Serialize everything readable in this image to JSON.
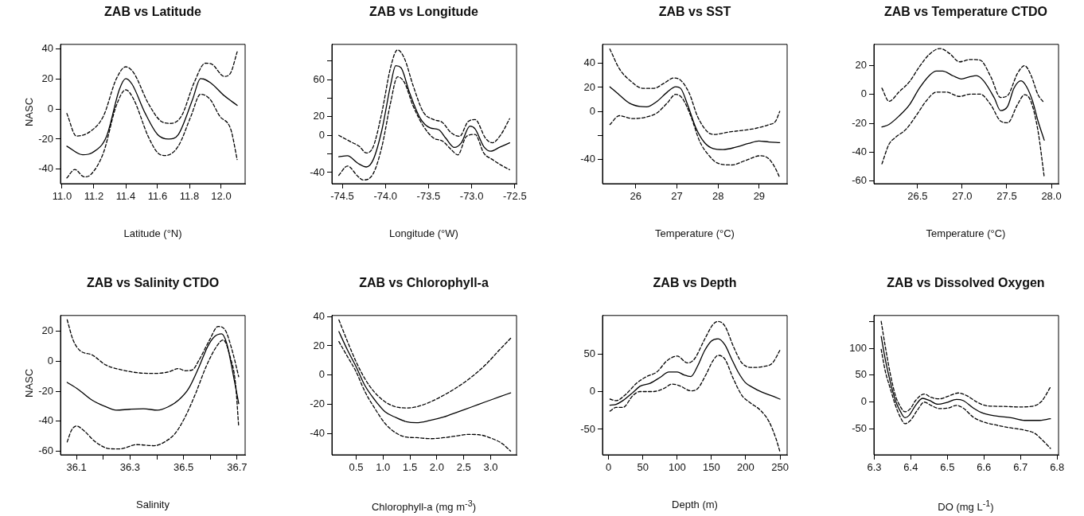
{
  "chart_data": [
    {
      "type": "line",
      "title": "ZAB vs Latitude",
      "xlabel": "Latitude (°N)",
      "ylabel": "NASC",
      "xlim": [
        10.99,
        12.15
      ],
      "ylim": [
        -49.6,
        42.9
      ],
      "xticks": [
        {
          "value": 11,
          "label": "11.0"
        },
        11.2,
        11.4,
        11.6,
        11.8,
        {
          "value": 12,
          "label": "12.0"
        }
      ],
      "yticks": [
        -40,
        -20,
        0,
        20,
        40
      ],
      "series": [
        {
          "color": "#000000",
          "line_style": "solid",
          "x": [
            11.03,
            11.13,
            11.19,
            11.28,
            11.36,
            11.4,
            11.44,
            11.52,
            11.6,
            11.67,
            11.73,
            11.82,
            11.87,
            11.93,
            12.02,
            12.1
          ],
          "values": [
            -24.7,
            -30.4,
            -29,
            -18,
            13,
            20.2,
            16.4,
            -2.4,
            -17,
            -20,
            -17,
            6.4,
            20.2,
            17.6,
            8.7,
            2.4
          ]
        },
        {
          "color": "#000000",
          "line_style": "dashed",
          "x": [
            11.03,
            11.09,
            11.18,
            11.26,
            11.34,
            11.4,
            11.45,
            11.54,
            11.62,
            11.68,
            11.75,
            11.83,
            11.9,
            11.94,
            12.02,
            12.06,
            12.1
          ],
          "values": [
            -3,
            -18,
            -14.7,
            -4.7,
            19.8,
            28,
            24,
            4,
            -8,
            -9.6,
            -4.7,
            17.6,
            30.4,
            29.8,
            21.6,
            24.2,
            38
          ]
        },
        {
          "color": "#000000",
          "line_style": "dashed",
          "x": [
            11.03,
            11.08,
            11.14,
            11.18,
            11.26,
            11.34,
            11.4,
            11.45,
            11.54,
            11.6,
            11.65,
            11.73,
            11.81,
            11.87,
            11.93,
            11.99,
            12.06,
            12.1
          ],
          "values": [
            -45.8,
            -40.2,
            -45.1,
            -43.6,
            -29,
            2,
            12.7,
            6.4,
            -18,
            -29,
            -30.9,
            -24.7,
            -4.7,
            9.8,
            6.4,
            -4.7,
            -13.6,
            -33.6
          ]
        }
      ]
    },
    {
      "type": "line",
      "title": "ZAB vs Longitude",
      "xlabel": "Longitude (°W)",
      "xlim": [
        -74.62,
        -72.48
      ],
      "ylim": [
        -52,
        98
      ],
      "xticks": [
        -74.5,
        {
          "value": -74,
          "label": "-74.0"
        },
        -73.5,
        {
          "value": -73,
          "label": "-73.0"
        },
        -72.5
      ],
      "yticks": [
        -40,
        {
          "value": -20,
          "label": null
        },
        0,
        20,
        {
          "value": 40,
          "label": null
        },
        60,
        {
          "value": 80,
          "label": null
        }
      ],
      "series": [
        {
          "color": "#000000",
          "line_style": "solid",
          "x": [
            -74.54,
            -74.44,
            -74.32,
            -74.22,
            -74.14,
            -74.04,
            -73.94,
            -73.88,
            -73.82,
            -73.72,
            -73.6,
            -73.48,
            -73.38,
            -73.3,
            -73.2,
            -73.12,
            -73.02,
            -72.96,
            -72.86,
            -72.78,
            -72.68,
            -72.56
          ],
          "values": [
            -23,
            -22,
            -30,
            -34,
            -26,
            6,
            54,
            75,
            73,
            46,
            19,
            8,
            6,
            -3,
            -13,
            -8,
            10,
            7,
            -12,
            -17,
            -13,
            -8
          ]
        },
        {
          "color": "#000000",
          "line_style": "dashed",
          "x": [
            -74.54,
            -74.4,
            -74.3,
            -74.22,
            -74.14,
            -74.04,
            -73.94,
            -73.86,
            -73.78,
            -73.68,
            -73.56,
            -73.44,
            -73.34,
            -73.24,
            -73.14,
            -73.04,
            -72.96,
            -72.84,
            -72.76,
            -72.66,
            -72.56
          ],
          "values": [
            0,
            -7,
            -12,
            -19,
            -12,
            25,
            73,
            92,
            83,
            54,
            25,
            17,
            14,
            3,
            -1,
            15,
            17,
            -3,
            -8,
            1,
            18
          ]
        },
        {
          "color": "#000000",
          "line_style": "dashed",
          "x": [
            -74.54,
            -74.44,
            -74.32,
            -74.26,
            -74.14,
            -74.04,
            -73.94,
            -73.86,
            -73.78,
            -73.68,
            -73.56,
            -73.44,
            -73.34,
            -73.24,
            -73.16,
            -73.06,
            -72.96,
            -72.86,
            -72.76,
            -72.66,
            -72.56
          ],
          "values": [
            -43,
            -33,
            -44,
            -48,
            -41,
            -12,
            35,
            63,
            57,
            32,
            10,
            -3,
            -6,
            -15,
            -21,
            -1,
            1,
            -19,
            -26,
            -32,
            -37
          ]
        }
      ]
    },
    {
      "type": "line",
      "title": "ZAB vs SST",
      "xlabel": "Temperature (°C)",
      "xlim": [
        25.19,
        29.68
      ],
      "ylim": [
        -60.3,
        55.9
      ],
      "xticks": [
        26,
        27,
        28,
        29
      ],
      "yticks": [
        -40,
        {
          "value": -20,
          "label": null
        },
        0,
        20,
        40
      ],
      "series": [
        {
          "color": "#000000",
          "line_style": "solid",
          "x": [
            25.37,
            25.6,
            25.85,
            26.1,
            26.26,
            26.51,
            26.76,
            26.97,
            27.09,
            27.26,
            27.46,
            27.67,
            27.88,
            28.12,
            28.41,
            28.74,
            28.99,
            29.24,
            29.5
          ],
          "values": [
            20.5,
            13.7,
            6.8,
            4.1,
            3.8,
            8.2,
            15.9,
            20.5,
            19.2,
            5.5,
            -13.7,
            -26,
            -31,
            -31.8,
            -30.1,
            -26.8,
            -24.7,
            -25.5,
            -26
          ]
        },
        {
          "color": "#000000",
          "line_style": "dashed",
          "x": [
            25.37,
            25.6,
            25.85,
            26.18,
            26.43,
            26.68,
            26.93,
            27.09,
            27.3,
            27.5,
            27.75,
            27.92,
            28.25,
            28.58,
            28.91,
            29.24,
            29.4,
            29.5
          ],
          "values": [
            52,
            35.6,
            26,
            19.2,
            19.2,
            23.3,
            27.9,
            26,
            15.1,
            -4.1,
            -17.3,
            -19.2,
            -17.3,
            -15.9,
            -14.2,
            -11,
            -8.2,
            0
          ]
        },
        {
          "color": "#000000",
          "line_style": "dashed",
          "x": [
            25.37,
            25.6,
            25.93,
            26.26,
            26.51,
            26.76,
            26.97,
            27.13,
            27.34,
            27.55,
            27.75,
            28.0,
            28.33,
            28.66,
            29.03,
            29.24,
            29.4,
            29.5
          ],
          "values": [
            -11,
            -3.6,
            -6,
            -4.7,
            -1.4,
            6.8,
            14.2,
            11,
            -4.1,
            -24.7,
            -35.6,
            -43.3,
            -44.7,
            -41.1,
            -37,
            -39.7,
            -47.9,
            -55.3
          ]
        }
      ]
    },
    {
      "type": "line",
      "title": "ZAB vs Temperature CTDO",
      "xlabel": "Temperature (°C)",
      "xlim": [
        26.01,
        28.08
      ],
      "ylim": [
        -61.9,
        34.7
      ],
      "xticks": [
        26.5,
        {
          "value": 27,
          "label": "27.0"
        },
        27.5,
        {
          "value": 28,
          "label": "28.0"
        }
      ],
      "yticks": [
        -60,
        -40,
        -20,
        0,
        20
      ],
      "series": [
        {
          "color": "#000000",
          "line_style": "solid",
          "x": [
            26.1,
            26.18,
            26.29,
            26.41,
            26.52,
            26.63,
            26.71,
            26.78,
            26.9,
            26.99,
            27.09,
            27.16,
            27.24,
            27.36,
            27.43,
            27.51,
            27.58,
            27.66,
            27.72,
            27.79,
            27.85,
            27.92
          ],
          "values": [
            -22.6,
            -20.8,
            -15.1,
            -7.1,
            4.3,
            13,
            16.2,
            16.2,
            12.8,
            10.7,
            12.3,
            13,
            9.4,
            -2.5,
            -11.2,
            -8.2,
            4.3,
            9.4,
            5.5,
            -4.8,
            -18.5,
            -31.8
          ]
        },
        {
          "color": "#000000",
          "line_style": "dashed",
          "x": [
            26.1,
            26.18,
            26.29,
            26.41,
            26.52,
            26.63,
            26.75,
            26.86,
            26.97,
            27.09,
            27.2,
            27.32,
            27.43,
            27.51,
            27.62,
            27.7,
            27.77,
            27.85,
            27.92
          ],
          "values": [
            4.3,
            -4.8,
            1.6,
            8.9,
            19.2,
            27.7,
            31.8,
            28.3,
            22.6,
            24.2,
            23.8,
            12.3,
            -2.1,
            -0.7,
            14.6,
            19.9,
            13.5,
            -0.2,
            -5.9
          ]
        },
        {
          "color": "#000000",
          "line_style": "dashed",
          "x": [
            26.1,
            26.18,
            26.25,
            26.37,
            26.48,
            26.6,
            26.71,
            26.82,
            26.97,
            27.09,
            27.2,
            27.32,
            27.43,
            27.51,
            27.62,
            27.7,
            27.77,
            27.85,
            27.92
          ],
          "values": [
            -48.2,
            -34.5,
            -29.9,
            -24.2,
            -15.1,
            -4.3,
            1.6,
            1.6,
            -1.4,
            0.2,
            0.2,
            -7.1,
            -18.5,
            -19.7,
            -7.1,
            -0.2,
            -4.8,
            -25.4,
            -57.4
          ]
        }
      ]
    },
    {
      "type": "line",
      "title": "ZAB vs Salinity CTDO",
      "xlabel": "Salinity",
      "ylabel": "NASC",
      "xlim": [
        36.04,
        36.73
      ],
      "ylim": [
        -62.6,
        30.7
      ],
      "xticks": [
        36.1,
        {
          "value": 36.2,
          "label": null
        },
        36.3,
        {
          "value": 36.4,
          "label": null
        },
        36.5,
        {
          "value": 36.6,
          "label": null
        },
        36.7
      ],
      "yticks": [
        -60,
        -40,
        -20,
        0,
        20
      ],
      "series": [
        {
          "color": "#000000",
          "line_style": "solid",
          "x": [
            36.065,
            36.106,
            36.158,
            36.21,
            36.248,
            36.3,
            36.35,
            36.403,
            36.442,
            36.481,
            36.519,
            36.558,
            36.59,
            36.616,
            36.642,
            36.661,
            36.687,
            36.706
          ],
          "values": [
            -14.1,
            -18.8,
            -26,
            -30.5,
            -32.7,
            -32.1,
            -31.8,
            -32.7,
            -30.5,
            -26,
            -18.2,
            -3.6,
            9.9,
            16.6,
            18.4,
            12.1,
            -10.3,
            -28.3
          ]
        },
        {
          "color": "#000000",
          "line_style": "dashed",
          "x": [
            36.065,
            36.087,
            36.113,
            36.158,
            36.21,
            36.261,
            36.326,
            36.39,
            36.442,
            36.481,
            36.506,
            36.532,
            36.558,
            36.597,
            36.629,
            36.655,
            36.681,
            36.706
          ],
          "values": [
            27.8,
            14.3,
            7.2,
            4.3,
            -2.5,
            -5.4,
            -7.6,
            -8.1,
            -7.2,
            -4.9,
            -6.3,
            -5.8,
            0.9,
            14.3,
            23.3,
            21.1,
            7.6,
            -10.3
          ]
        },
        {
          "color": "#000000",
          "line_style": "dashed",
          "x": [
            36.065,
            36.081,
            36.1,
            36.126,
            36.171,
            36.223,
            36.261,
            36.326,
            36.39,
            36.429,
            36.468,
            36.506,
            36.545,
            36.584,
            36.623,
            36.648,
            36.674,
            36.694,
            36.706
          ],
          "values": [
            -54,
            -46.2,
            -43.3,
            -46.2,
            -54,
            -58.5,
            -58.7,
            -55.8,
            -56.5,
            -54,
            -48.4,
            -37.2,
            -21.5,
            -3.6,
            9.9,
            14.3,
            3.1,
            -14.8,
            -43.9
          ]
        }
      ]
    },
    {
      "type": "line",
      "title": "ZAB vs Chlorophyll-a",
      "xlabel": "Chlorophyll-a (mg m$^{-3}$)",
      "xlim": [
        0.05,
        3.48
      ],
      "ylim": [
        -54.4,
        40.7
      ],
      "xticks": [
        0.5,
        {
          "value": 1,
          "label": "1.0"
        },
        1.5,
        {
          "value": 2,
          "label": "2.0"
        },
        2.5,
        {
          "value": 3,
          "label": "3.0"
        }
      ],
      "yticks": [
        -40,
        -20,
        0,
        20,
        40
      ],
      "series": [
        {
          "color": "#000000",
          "line_style": "solid",
          "x": [
            0.18,
            0.34,
            0.5,
            0.66,
            0.85,
            1.04,
            1.24,
            1.43,
            1.62,
            1.88,
            2.13,
            2.39,
            2.65,
            2.9,
            3.16,
            3.37
          ],
          "values": [
            29.7,
            17.1,
            5.7,
            -6.9,
            -17.1,
            -25.1,
            -29,
            -31.8,
            -32.5,
            -30.9,
            -28.6,
            -25.1,
            -21.7,
            -18.3,
            -14.9,
            -12.1
          ]
        },
        {
          "color": "#000000",
          "line_style": "dashed",
          "x": [
            0.18,
            0.34,
            0.5,
            0.66,
            0.85,
            1.04,
            1.24,
            1.43,
            1.62,
            1.88,
            2.13,
            2.39,
            2.65,
            2.9,
            3.16,
            3.37
          ],
          "values": [
            37.7,
            22.9,
            9.1,
            -2.3,
            -12,
            -18.3,
            -21.7,
            -22.4,
            -21.7,
            -18.3,
            -13.7,
            -8,
            -1.1,
            6.9,
            17.1,
            25.1
          ]
        },
        {
          "color": "#000000",
          "line_style": "dashed",
          "x": [
            0.18,
            0.34,
            0.5,
            0.66,
            0.85,
            1.04,
            1.24,
            1.43,
            1.62,
            1.88,
            2.13,
            2.39,
            2.58,
            2.78,
            3.03,
            3.22,
            3.37
          ],
          "values": [
            22.9,
            12.6,
            2.3,
            -11,
            -22.9,
            -33.1,
            -39.5,
            -42.3,
            -42.7,
            -43.4,
            -42.7,
            -41.4,
            -40.5,
            -40.7,
            -43.4,
            -46.9,
            -51.9
          ]
        }
      ]
    },
    {
      "type": "line",
      "title": "ZAB vs Depth",
      "xlabel": "Depth (m)",
      "xlim": [
        -8.9,
        260.4
      ],
      "ylim": [
        -83.8,
        100.9
      ],
      "xticks": [
        0,
        50,
        100,
        150,
        200,
        250
      ],
      "yticks": [
        -50,
        0,
        50
      ],
      "series": [
        {
          "color": "#000000",
          "line_style": "solid",
          "x": [
            2,
            10.9,
            20.8,
            35.7,
            45.6,
            60.5,
            75.4,
            87.8,
            100.2,
            110.1,
            120,
            129.9,
            139.9,
            149.8,
            159.7,
            169.6,
            179.6,
            189.5,
            199.4,
            209.3,
            224.2,
            239.1,
            250
          ],
          "values": [
            -18,
            -17,
            -12,
            -1,
            7,
            11,
            19,
            26,
            26,
            22,
            20,
            34,
            54,
            67,
            70,
            62,
            43,
            25,
            12,
            6,
            -1,
            -6,
            -10
          ]
        },
        {
          "color": "#000000",
          "line_style": "dashed",
          "x": [
            2,
            10.9,
            25.8,
            40.7,
            55.6,
            70.4,
            85.3,
            100.2,
            115.1,
            125,
            139.9,
            152.3,
            159.7,
            169.6,
            182,
            194.4,
            209.3,
            224.2,
            239.1,
            250
          ],
          "values": [
            -10,
            -12,
            -3,
            11,
            20,
            26,
            41,
            47,
            38,
            43,
            69,
            89,
            93,
            87,
            60,
            38,
            32,
            33,
            38,
            55
          ]
        },
        {
          "color": "#000000",
          "line_style": "dashed",
          "x": [
            2,
            10.9,
            20.8,
            35.7,
            45.6,
            65.5,
            80.4,
            92.8,
            105.2,
            120,
            129.9,
            142.3,
            152.3,
            159.7,
            169.6,
            182,
            194.4,
            206.8,
            221.7,
            234.1,
            244,
            250
          ],
          "values": [
            -26,
            -21,
            -21,
            -5,
            0,
            0,
            4,
            10,
            7,
            1,
            4,
            23,
            41,
            48,
            43,
            17,
            -5,
            -15,
            -25,
            -40,
            -62,
            -80
          ]
        }
      ]
    },
    {
      "type": "line",
      "title": "ZAB vs Dissolved Oxygen",
      "xlabel": "DO (mg L$^{-1}$)",
      "xlim": [
        6.299,
        6.804
      ],
      "ylim": [
        -97.9,
        161
      ],
      "xticks": [
        6.3,
        6.4,
        6.5,
        6.6,
        6.7,
        6.8
      ],
      "yticks": [
        -50,
        0,
        50,
        100,
        {
          "value": 150,
          "label": null
        }
      ],
      "series": [
        {
          "color": "#000000",
          "line_style": "solid",
          "x": [
            6.319,
            6.33,
            6.344,
            6.358,
            6.372,
            6.384,
            6.395,
            6.413,
            6.432,
            6.451,
            6.474,
            6.497,
            6.525,
            6.543,
            6.571,
            6.599,
            6.636,
            6.674,
            6.711,
            6.748,
            6.782
          ],
          "values": [
            122,
            80,
            37,
            3,
            -18,
            -29,
            -25,
            -6,
            7,
            3,
            -4,
            -1,
            5,
            3,
            -11,
            -21,
            -26,
            -29,
            -34,
            -34,
            -31
          ]
        },
        {
          "color": "#000000",
          "line_style": "dashed",
          "x": [
            6.319,
            6.33,
            6.344,
            6.358,
            6.372,
            6.384,
            6.399,
            6.413,
            6.437,
            6.455,
            6.478,
            6.502,
            6.53,
            6.553,
            6.581,
            6.609,
            6.655,
            6.692,
            6.729,
            6.757,
            6.782
          ],
          "values": [
            150,
            104,
            52,
            12,
            -9,
            -18,
            -12,
            3,
            15,
            9,
            6,
            11,
            17,
            12,
            0,
            -7,
            -8,
            -9,
            -8,
            1,
            28
          ]
        },
        {
          "color": "#000000",
          "line_style": "dashed",
          "x": [
            6.319,
            6.33,
            6.344,
            6.358,
            6.372,
            6.384,
            6.399,
            6.418,
            6.437,
            6.455,
            6.478,
            6.502,
            6.525,
            6.543,
            6.571,
            6.599,
            6.636,
            6.674,
            6.711,
            6.739,
            6.762,
            6.782
          ],
          "values": [
            98,
            58,
            25,
            -6,
            -29,
            -40,
            -34,
            -15,
            0,
            -6,
            -12,
            -11,
            -6,
            -11,
            -28,
            -37,
            -43,
            -48,
            -52,
            -58,
            -72,
            -86
          ]
        }
      ]
    }
  ]
}
